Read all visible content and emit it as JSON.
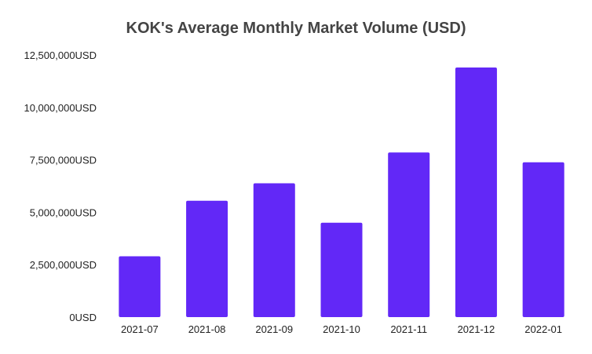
{
  "chart_data": {
    "type": "bar",
    "title": "KOK's Average Monthly Market Volume (USD)",
    "xlabel": "",
    "ylabel": "",
    "categories": [
      "2021-07",
      "2021-08",
      "2021-09",
      "2021-10",
      "2021-11",
      "2021-12",
      "2022-01"
    ],
    "values": [
      2900000,
      5550000,
      6380000,
      4500000,
      7850000,
      11900000,
      7380000
    ],
    "ylim": [
      0,
      12500000
    ],
    "y_ticks": [
      0,
      2500000,
      5000000,
      7500000,
      10000000,
      12500000
    ],
    "y_tick_labels": [
      "0USD",
      "2,500,000USD",
      "5,000,000USD",
      "7,500,000USD",
      "10,000,000USD",
      "12,500,000USD"
    ],
    "grid": false,
    "legend": "none",
    "bar_color": "#6228f7"
  }
}
